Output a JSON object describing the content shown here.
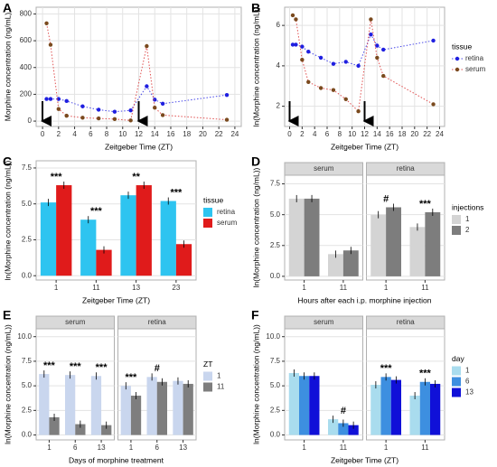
{
  "chart_data": [
    {
      "type": "line",
      "label": "A",
      "x_label": "Zeitgeber Time (ZT)",
      "y_label": "Morphine concentration (ng/mL)",
      "xlim": [
        -0.8,
        24.8
      ],
      "xticks": [
        0,
        2,
        4,
        6,
        8,
        10,
        12,
        14,
        16,
        18,
        20,
        22,
        24
      ],
      "ylim": [
        -40,
        850
      ],
      "yticks": [
        0,
        200,
        400,
        600,
        800
      ],
      "grid": true,
      "series": [
        {
          "name": "retina",
          "color": "#1f1fe0",
          "line_color": "#4a4ae8",
          "x": [
            0.5,
            1,
            2,
            3,
            5,
            7,
            9,
            11,
            13,
            14,
            15,
            23
          ],
          "values": [
            165,
            165,
            165,
            150,
            110,
            85,
            70,
            80,
            260,
            160,
            130,
            195
          ]
        },
        {
          "name": "serum",
          "color": "#7a4a1e",
          "line_color": "#e05050",
          "x": [
            0.5,
            1,
            2,
            3,
            5,
            7,
            9,
            11,
            13,
            14,
            15,
            23
          ],
          "values": [
            730,
            570,
            90,
            40,
            25,
            20,
            15,
            5,
            560,
            100,
            45,
            10
          ]
        }
      ]
    },
    {
      "type": "line",
      "label": "B",
      "x_label": "Zeitgeber Time (ZT)",
      "y_label": "ln(Morphine concentration (ng/mL))",
      "xlim": [
        -0.8,
        24.8
      ],
      "xticks": [
        0,
        2,
        4,
        6,
        8,
        10,
        12,
        14,
        16,
        18,
        20,
        22,
        24
      ],
      "ylim": [
        1,
        6.9
      ],
      "yticks": [
        2,
        4,
        6
      ],
      "grid": true,
      "legend_title": "tissue",
      "series": [
        {
          "name": "retina",
          "color": "#1f1fe0",
          "line_color": "#4a4ae8",
          "x": [
            0.5,
            1,
            2,
            3,
            5,
            7,
            9,
            11,
            13,
            14,
            15,
            23
          ],
          "values": [
            5.05,
            5.05,
            4.95,
            4.7,
            4.4,
            4.1,
            4.2,
            4.0,
            5.55,
            5.0,
            4.8,
            5.25
          ]
        },
        {
          "name": "serum",
          "color": "#7a4a1e",
          "line_color": "#e05050",
          "x": [
            0.5,
            1,
            2,
            3,
            5,
            7,
            9,
            11,
            13,
            14,
            15,
            23
          ],
          "values": [
            6.5,
            6.3,
            4.3,
            3.2,
            2.9,
            2.8,
            2.35,
            1.75,
            6.3,
            4.4,
            3.5,
            2.1
          ]
        }
      ]
    },
    {
      "type": "bar",
      "label": "C",
      "x_label": "Zeitgeber Time (ZT)",
      "y_label": "ln(Morphine concentration (ng/mL))",
      "categories": [
        "1",
        "11",
        "13",
        "23"
      ],
      "ylim": [
        -0.3,
        8
      ],
      "yticks": [
        {
          "value": 0,
          "label": "0.0"
        },
        {
          "value": 2.5,
          "label": "2.5"
        },
        {
          "value": 5,
          "label": "5.0"
        },
        {
          "value": 7.5,
          "label": "7.5"
        }
      ],
      "grid": true,
      "legend_title": "tissue",
      "series": [
        {
          "name": "retina",
          "color": "#2ec4f0",
          "values": [
            5.1,
            3.9,
            5.6,
            5.2
          ]
        },
        {
          "name": "serum",
          "color": "#e01b1b",
          "values": [
            6.3,
            1.8,
            6.3,
            2.2
          ]
        }
      ],
      "annotations": [
        "***",
        "***",
        "**",
        "***"
      ]
    },
    {
      "type": "bar",
      "label": "D",
      "x_label": "Hours after each i.p. morphine injection",
      "y_label": "ln(Morphine concentration (ng/mL))",
      "facets": [
        "serum",
        "retina"
      ],
      "categories": [
        "1",
        "11"
      ],
      "ylim": [
        -0.3,
        8.2
      ],
      "yticks": [
        {
          "value": 0,
          "label": "0.0"
        },
        {
          "value": 2.5,
          "label": "2.5"
        },
        {
          "value": 5,
          "label": "5.0"
        },
        {
          "value": 7.5,
          "label": "7.5"
        }
      ],
      "grid": true,
      "legend_title": "injections",
      "series": [
        {
          "name": "1",
          "color": "#d4d4d4",
          "values": [
            [
              6.3,
              1.8
            ],
            [
              5.0,
              4.0
            ]
          ]
        },
        {
          "name": "2",
          "color": "#7d7d7d",
          "values": [
            [
              6.3,
              2.1
            ],
            [
              5.6,
              5.2
            ]
          ]
        }
      ],
      "annotations": [
        [
          null,
          null
        ],
        [
          "#",
          "***"
        ]
      ]
    },
    {
      "type": "bar",
      "label": "E",
      "x_label": "Days of morphine treatment",
      "y_label": "ln(Morphine concentration (ng/mL))",
      "facets": [
        "serum",
        "retina"
      ],
      "categories": [
        "1",
        "6",
        "13"
      ],
      "ylim": [
        -0.5,
        10.8
      ],
      "yticks": [
        {
          "value": 0,
          "label": "0.0"
        },
        {
          "value": 2.5,
          "label": "2.5"
        },
        {
          "value": 5,
          "label": "5.0"
        },
        {
          "value": 7.5,
          "label": "7.5"
        },
        {
          "value": 10,
          "label": "10.0"
        }
      ],
      "grid": true,
      "legend_title": "ZT",
      "series": [
        {
          "name": "1",
          "color": "#c9d6ee",
          "values": [
            [
              6.2,
              6.1,
              6.0
            ],
            [
              5.0,
              5.9,
              5.5
            ]
          ]
        },
        {
          "name": "11",
          "color": "#7e7e7e",
          "values": [
            [
              1.8,
              1.1,
              1.0
            ],
            [
              4.0,
              5.4,
              5.2
            ]
          ]
        }
      ],
      "annotations": [
        [
          "***",
          "***",
          "***"
        ],
        [
          "***",
          "#",
          null
        ]
      ]
    },
    {
      "type": "bar",
      "label": "F",
      "x_label": "Zeitgeber Time (ZT)",
      "y_label": "ln(Morphine concentration (ng/mL))",
      "facets": [
        "serum",
        "retina"
      ],
      "categories": [
        "1",
        "11"
      ],
      "ylim": [
        -0.5,
        10.8
      ],
      "yticks": [
        {
          "value": 0,
          "label": "0.0"
        },
        {
          "value": 2.5,
          "label": "2.5"
        },
        {
          "value": 5,
          "label": "5.0"
        },
        {
          "value": 7.5,
          "label": "7.5"
        },
        {
          "value": 10,
          "label": "10.0"
        }
      ],
      "grid": true,
      "legend_title": "day",
      "series": [
        {
          "name": "1",
          "color": "#a9dcee",
          "values": [
            [
              6.3,
              1.6
            ],
            [
              5.1,
              4.0
            ]
          ]
        },
        {
          "name": "6",
          "color": "#3d8fe0",
          "values": [
            [
              6.0,
              1.2
            ],
            [
              5.9,
              5.4
            ]
          ]
        },
        {
          "name": "13",
          "color": "#1010d8",
          "values": [
            [
              6.0,
              1.0
            ],
            [
              5.6,
              5.2
            ]
          ]
        }
      ],
      "annotations": [
        [
          null,
          "#"
        ],
        [
          "***",
          "***"
        ]
      ]
    }
  ]
}
